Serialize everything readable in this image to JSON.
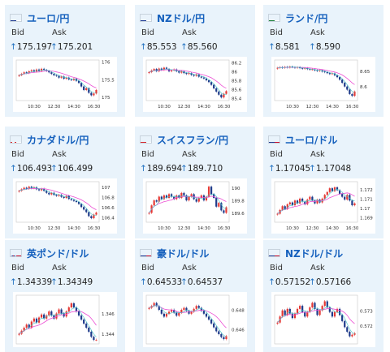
{
  "labels": {
    "bid": "Bid",
    "ask": "Ask"
  },
  "colors": {
    "up": "#1f6fc0",
    "card_bg": "#e9f3fb",
    "title": "#1560bd",
    "bull": "#e53935",
    "bear": "#1e3a8a",
    "ma_short": "#ec4fd4",
    "ma_long": "#47c7c7"
  },
  "cards": [
    {
      "title": "ユーロ/円",
      "flag_icon": "eu-japan-flag-icon",
      "bid": "175.197",
      "ask": "175.201",
      "chart_data": {
        "type": "candlestick",
        "x_ticks": [
          "10:30",
          "12:30",
          "14:30",
          "16:30"
        ],
        "y_ticks": [
          "176",
          "175.5",
          "175"
        ],
        "ylim": [
          174.9,
          176.05
        ],
        "closes": [
          175.62,
          175.66,
          175.7,
          175.68,
          175.73,
          175.76,
          175.72,
          175.78,
          175.74,
          175.8,
          175.77,
          175.74,
          175.7,
          175.66,
          175.62,
          175.6,
          175.55,
          175.58,
          175.52,
          175.55,
          175.5,
          175.48,
          175.52,
          175.46,
          175.4,
          175.3,
          175.2,
          175.25,
          175.12,
          175.05,
          175.1,
          175.2
        ]
      }
    },
    {
      "title": "NZドル/円",
      "flag_icon": "nz-japan-flag-icon",
      "bid": "85.553",
      "ask": "85.560",
      "chart_data": {
        "type": "candlestick",
        "x_ticks": [
          "10:30",
          "12:30",
          "14:30",
          "16:30"
        ],
        "y_ticks": [
          "86.2",
          "86",
          "85.8",
          "85.6",
          "85.4"
        ],
        "ylim": [
          85.35,
          86.25
        ],
        "closes": [
          85.98,
          86.02,
          86.05,
          86.0,
          86.06,
          86.03,
          86.08,
          86.05,
          86.0,
          86.02,
          86.04,
          86.0,
          85.97,
          86.0,
          85.96,
          85.94,
          85.96,
          85.92,
          85.9,
          85.93,
          85.88,
          85.86,
          85.84,
          85.8,
          85.76,
          85.7,
          85.62,
          85.55,
          85.48,
          85.42,
          85.5,
          85.56
        ]
      }
    },
    {
      "title": "ランド/円",
      "flag_icon": "za-japan-flag-icon",
      "bid": "8.581",
      "ask": "8.590",
      "chart_data": {
        "type": "candlestick",
        "x_ticks": [
          "10:30",
          "12:30",
          "14:30",
          "16:30"
        ],
        "y_ticks": [
          "8.65",
          "8.6"
        ],
        "ylim": [
          8.555,
          8.685
        ],
        "closes": [
          8.66,
          8.662,
          8.66,
          8.663,
          8.661,
          8.664,
          8.662,
          8.66,
          8.662,
          8.659,
          8.657,
          8.659,
          8.656,
          8.654,
          8.655,
          8.652,
          8.65,
          8.652,
          8.648,
          8.646,
          8.643,
          8.64,
          8.642,
          8.636,
          8.63,
          8.622,
          8.612,
          8.6,
          8.59,
          8.576,
          8.57,
          8.584
        ]
      }
    },
    {
      "title": "カナダドル/円",
      "flag_icon": "ca-japan-flag-icon",
      "bid": "106.493",
      "ask": "106.499",
      "chart_data": {
        "type": "candlestick",
        "x_ticks": [
          "10:30",
          "12:30",
          "14:30",
          "16:30"
        ],
        "y_ticks": [
          "107",
          "106.8",
          "106.6",
          "106.4"
        ],
        "ylim": [
          106.3,
          107.1
        ],
        "closes": [
          106.92,
          106.95,
          106.98,
          106.96,
          107.0,
          106.97,
          106.99,
          106.95,
          106.93,
          106.96,
          106.92,
          106.88,
          106.85,
          106.88,
          106.84,
          106.82,
          106.84,
          106.8,
          106.78,
          106.82,
          106.76,
          106.74,
          106.72,
          106.7,
          106.66,
          106.6,
          106.55,
          106.5,
          106.42,
          106.38,
          106.45,
          106.49
        ]
      }
    },
    {
      "title": "スイスフラン/円",
      "flag_icon": "ch-japan-flag-icon",
      "bid": "189.694",
      "ask": "189.710",
      "chart_data": {
        "type": "candlestick",
        "x_ticks": [
          "10:30",
          "12:30",
          "14:30",
          "16:30"
        ],
        "y_ticks": [
          "190",
          "189.8",
          "189.6"
        ],
        "ylim": [
          189.45,
          190.1
        ],
        "closes": [
          189.6,
          189.72,
          189.8,
          189.78,
          189.86,
          189.82,
          189.88,
          189.84,
          189.9,
          189.86,
          189.82,
          189.88,
          189.84,
          189.92,
          189.88,
          189.8,
          189.86,
          189.9,
          189.82,
          189.78,
          189.84,
          189.88,
          189.8,
          189.86,
          190.02,
          189.9,
          189.84,
          189.7,
          189.76,
          189.64,
          189.6,
          189.69
        ]
      }
    },
    {
      "title": "ユーロ/ドル",
      "flag_icon": "eu-us-flag-icon",
      "bid": "1.17045",
      "ask": "1.17048",
      "chart_data": {
        "type": "candlestick",
        "x_ticks": [
          "10:30",
          "12:30",
          "14:30",
          "16:30"
        ],
        "y_ticks": [
          "1.172",
          "1.171",
          "1.17",
          "1.169"
        ],
        "ylim": [
          1.1685,
          1.1728
        ],
        "closes": [
          1.1694,
          1.1698,
          1.1702,
          1.1699,
          1.1704,
          1.1706,
          1.1703,
          1.1708,
          1.1705,
          1.171,
          1.1707,
          1.1704,
          1.1709,
          1.1712,
          1.1708,
          1.1705,
          1.1709,
          1.1706,
          1.171,
          1.1714,
          1.1717,
          1.1721,
          1.1718,
          1.1722,
          1.1719,
          1.1715,
          1.1712,
          1.1709,
          1.1714,
          1.1708,
          1.1703,
          1.1705
        ]
      }
    },
    {
      "title": "英ポンド/ドル",
      "flag_icon": "gb-us-flag-icon",
      "bid": "1.34339",
      "ask": "1.34349",
      "chart_data": {
        "type": "candlestick",
        "x_ticks": [],
        "y_ticks": [
          "1.346",
          "1.344"
        ],
        "ylim": [
          1.343,
          1.3478
        ],
        "closes": [
          1.344,
          1.3443,
          1.3446,
          1.3449,
          1.3446,
          1.3452,
          1.3455,
          1.3451,
          1.3456,
          1.3459,
          1.3455,
          1.3458,
          1.3462,
          1.3458,
          1.3455,
          1.346,
          1.3464,
          1.346,
          1.3457,
          1.3462,
          1.3466,
          1.347,
          1.3466,
          1.3462,
          1.3458,
          1.3454,
          1.345,
          1.3446,
          1.3442,
          1.3437,
          1.3434,
          1.3434
        ]
      }
    },
    {
      "title": "豪ドル/ドル",
      "flag_icon": "au-us-flag-icon",
      "bid": "0.64533",
      "ask": "0.64537",
      "chart_data": {
        "type": "candlestick",
        "x_ticks": [],
        "y_ticks": [
          "0.648",
          "0.646"
        ],
        "ylim": [
          0.6445,
          0.6495
        ],
        "closes": [
          0.6482,
          0.6484,
          0.6487,
          0.6484,
          0.648,
          0.6476,
          0.6473,
          0.6476,
          0.6478,
          0.648,
          0.6477,
          0.6474,
          0.6477,
          0.648,
          0.6482,
          0.6479,
          0.6476,
          0.6478,
          0.6481,
          0.6484,
          0.6482,
          0.6479,
          0.6476,
          0.6473,
          0.647,
          0.6466,
          0.6462,
          0.6458,
          0.6455,
          0.6452,
          0.645,
          0.6453
        ]
      }
    },
    {
      "title": "NZドル/ドル",
      "flag_icon": "nz-us-flag-icon",
      "bid": "0.57152",
      "ask": "0.57166",
      "chart_data": {
        "type": "candlestick",
        "x_ticks": [],
        "y_ticks": [
          "0.573",
          "0.572"
        ],
        "ylim": [
          0.5708,
          0.574
        ],
        "closes": [
          0.5722,
          0.5726,
          0.573,
          0.5727,
          0.5731,
          0.5728,
          0.5725,
          0.5728,
          0.5731,
          0.5733,
          0.5729,
          0.5726,
          0.5729,
          0.5732,
          0.5735,
          0.5731,
          0.5727,
          0.573,
          0.5733,
          0.5736,
          0.5732,
          0.5729,
          0.5726,
          0.5729,
          0.5731,
          0.5727,
          0.5723,
          0.5719,
          0.5716,
          0.5713,
          0.5714,
          0.5715
        ]
      }
    }
  ]
}
